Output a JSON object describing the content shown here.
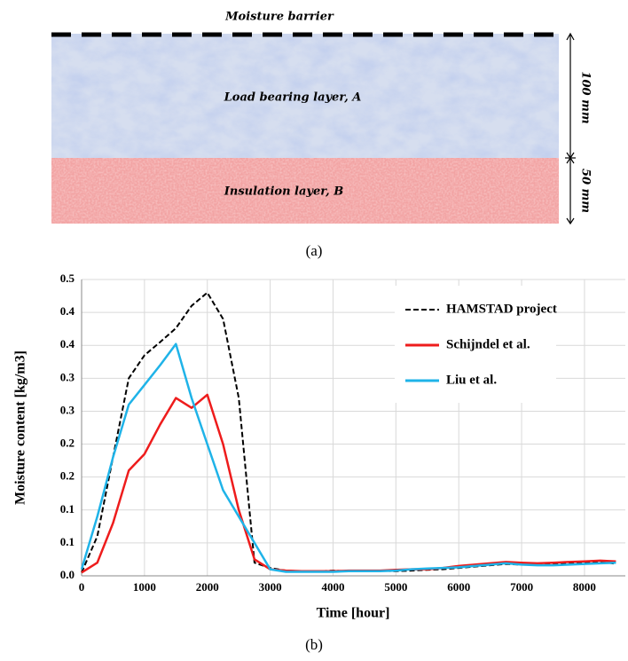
{
  "diagram": {
    "barrier": "Moisture barrier",
    "layer_a": "Load bearing layer, A",
    "layer_b": "Insulation layer, B",
    "thickness_a": "100 mm",
    "thickness_b": "50 mm"
  },
  "captions": [
    "(a)",
    "(b)"
  ],
  "chart_data": {
    "type": "line",
    "xlabel": "Time [hour]",
    "ylabel": "Moisture content [kg/m3]",
    "x": [
      0,
      250,
      500,
      750,
      1000,
      1250,
      1500,
      1750,
      2000,
      2250,
      2500,
      2750,
      3000,
      3250,
      3500,
      3750,
      4000,
      4250,
      4500,
      4750,
      5000,
      5250,
      5500,
      5750,
      6000,
      6250,
      6500,
      6750,
      7000,
      7250,
      7500,
      7750,
      8000,
      8250,
      8500
    ],
    "series": [
      {
        "name": "HAMSTAD project",
        "color": "#000000",
        "linestyle": "dashed",
        "values": [
          0.005,
          0.06,
          0.18,
          0.3,
          0.335,
          0.355,
          0.376,
          0.41,
          0.43,
          0.39,
          0.27,
          0.02,
          0.012,
          0.008,
          0.007,
          0.007,
          0.008,
          0.007,
          0.007,
          0.008,
          0.007,
          0.008,
          0.009,
          0.01,
          0.012,
          0.014,
          0.016,
          0.018,
          0.017,
          0.018,
          0.018,
          0.02,
          0.02,
          0.022,
          0.018
        ]
      },
      {
        "name": "Schijndel et al.",
        "color": "#ee1c1c",
        "linestyle": "solid",
        "values": [
          0.005,
          0.02,
          0.08,
          0.16,
          0.185,
          0.23,
          0.27,
          0.255,
          0.275,
          0.2,
          0.1,
          0.025,
          0.01,
          0.008,
          0.007,
          0.007,
          0.007,
          0.008,
          0.008,
          0.008,
          0.009,
          0.01,
          0.01,
          0.012,
          0.015,
          0.017,
          0.019,
          0.021,
          0.02,
          0.019,
          0.02,
          0.021,
          0.022,
          0.023,
          0.022
        ]
      },
      {
        "name": "Liu et al.",
        "color": "#1fb3e8",
        "linestyle": "solid",
        "values": [
          0.01,
          0.09,
          0.18,
          0.26,
          0.29,
          0.32,
          0.352,
          0.27,
          0.2,
          0.13,
          0.09,
          0.05,
          0.01,
          0.006,
          0.006,
          0.006,
          0.006,
          0.007,
          0.007,
          0.007,
          0.008,
          0.01,
          0.011,
          0.012,
          0.013,
          0.015,
          0.017,
          0.019,
          0.017,
          0.016,
          0.016,
          0.017,
          0.018,
          0.019,
          0.02
        ]
      }
    ],
    "xlim": [
      0,
      8650
    ],
    "xticks": [
      0,
      1000,
      2000,
      3000,
      4000,
      5000,
      6000,
      7000,
      8000
    ],
    "ylim": [
      0,
      0.45
    ],
    "yticks": [
      {
        "value": 0,
        "label": "0.0"
      },
      {
        "value": 0.05,
        "label": "0.1"
      },
      {
        "value": 0.1,
        "label": "0.1"
      },
      {
        "value": 0.15,
        "label": "0.2"
      },
      {
        "value": 0.2,
        "label": "0.2"
      },
      {
        "value": 0.25,
        "label": "0.3"
      },
      {
        "value": 0.3,
        "label": "0.3"
      },
      {
        "value": 0.35,
        "label": "0.4"
      },
      {
        "value": 0.4,
        "label": "0.4"
      },
      {
        "value": 0.45,
        "label": "0.5"
      }
    ],
    "grid": true,
    "legend": "upper right"
  }
}
